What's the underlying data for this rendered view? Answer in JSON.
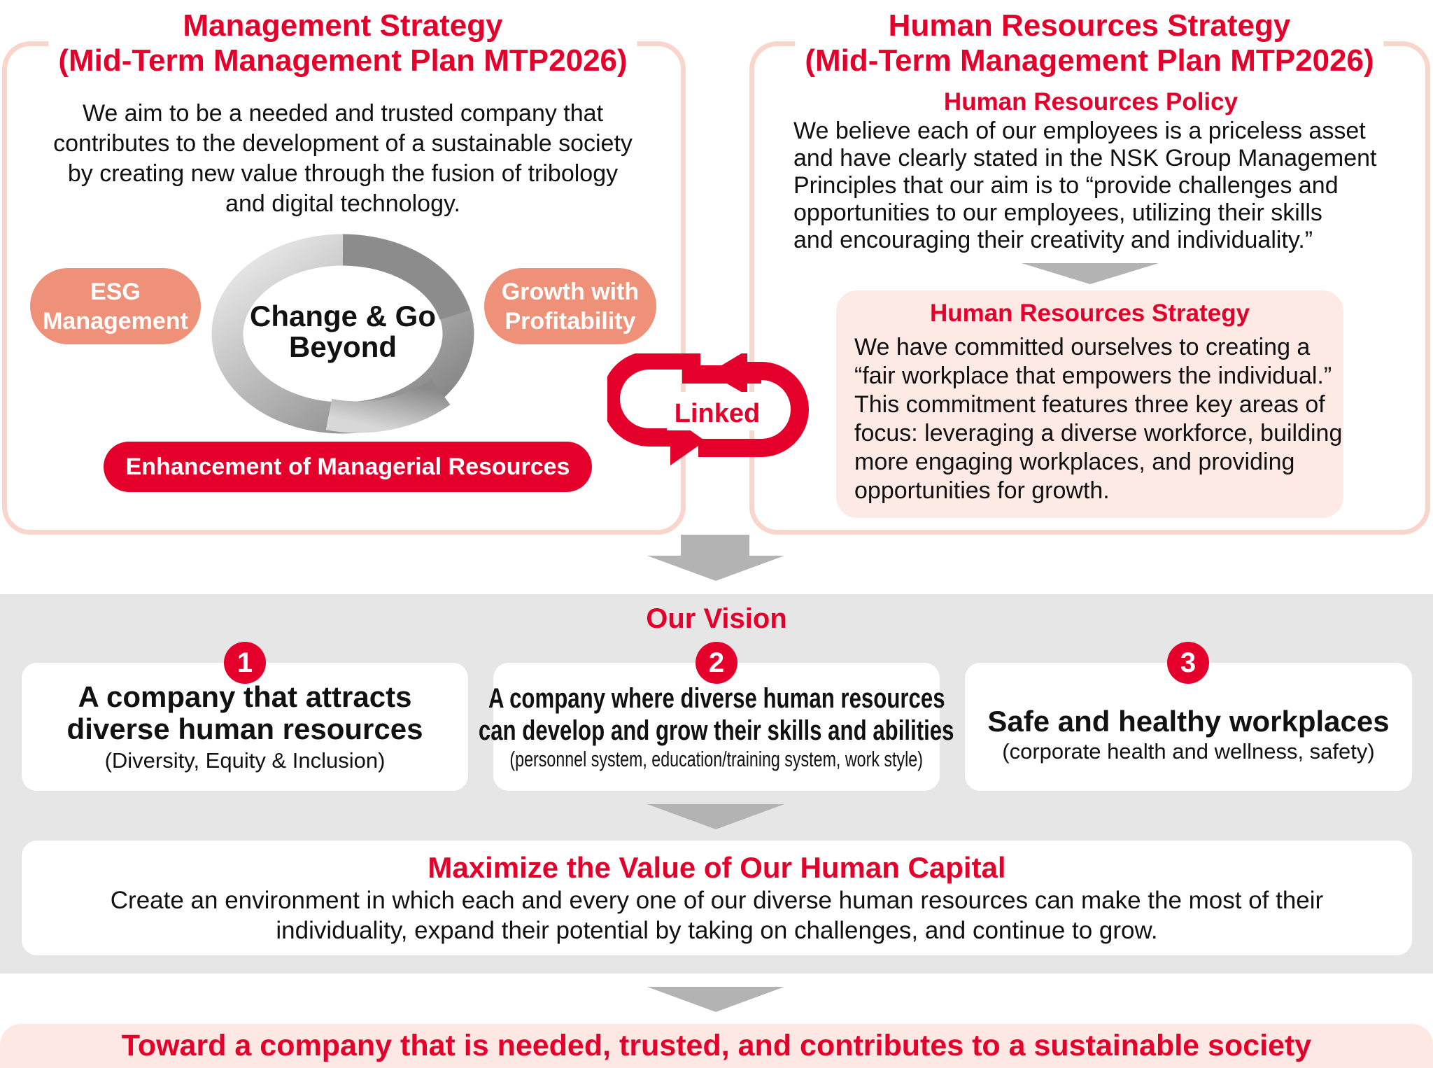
{
  "management": {
    "title1": "Management Strategy",
    "title2": "(Mid-Term Management Plan MTP2026)",
    "body": [
      "We aim to be a needed and trusted company that",
      "contributes to the development of a sustainable society",
      "by creating new value through the fusion of tribology",
      "and digital technology."
    ],
    "esg": [
      "ESG",
      "Management"
    ],
    "growth": [
      "Growth with",
      "Profitability"
    ],
    "center": [
      "Change & Go",
      "Beyond"
    ],
    "enhancement": "Enhancement of Managerial Resources"
  },
  "linked": "Linked",
  "hr": {
    "title1": "Human Resources Strategy",
    "title2": "(Mid-Term Management Plan MTP2026)",
    "policy_title": "Human Resources Policy",
    "policy": [
      "We believe each of our employees is a priceless asset",
      "and have clearly stated in the NSK Group Management",
      "Principles that our aim is to “provide challenges and",
      "opportunities to our employees, utilizing their skills",
      "and encouraging their creativity and individuality.”"
    ],
    "strategy_title": "Human Resources Strategy",
    "strategy": [
      "We have committed ourselves to creating a",
      "“fair workplace that empowers the individual.”",
      "This commitment features three key areas of",
      "focus: leveraging a diverse workforce, building",
      "more engaging workplaces, and providing",
      "opportunities for growth."
    ]
  },
  "vision": {
    "title": "Our Vision",
    "cards": [
      {
        "num": "1",
        "lines": [
          "A company that attracts",
          "diverse human resources"
        ],
        "sub": "(Diversity, Equity & Inclusion)"
      },
      {
        "num": "2",
        "lines": [
          "A company where diverse human resources",
          "can develop and grow their skills and abilities"
        ],
        "sub": "(personnel system, education/training system, work style)"
      },
      {
        "num": "3",
        "lines": [
          "Safe and healthy workplaces"
        ],
        "sub": "(corporate health and wellness, safety)"
      }
    ]
  },
  "capital": {
    "title": "Maximize the Value of Our Human Capital",
    "body": [
      "Create an environment in which each and every one of our diverse human resources can make the most of their",
      "individuality, expand their potential by taking on challenges, and continue to grow."
    ]
  },
  "goal": "Toward a company that is needed, trusted, and contributes to a sustainable society",
  "colors": {
    "red": "#e4002b",
    "salmon": "#ef9079",
    "pink_border": "#f9d6cc",
    "pink_fill": "#fdeae5",
    "gray_band": "#e6e6e6",
    "arrow_gray": "#b3b3b3"
  }
}
